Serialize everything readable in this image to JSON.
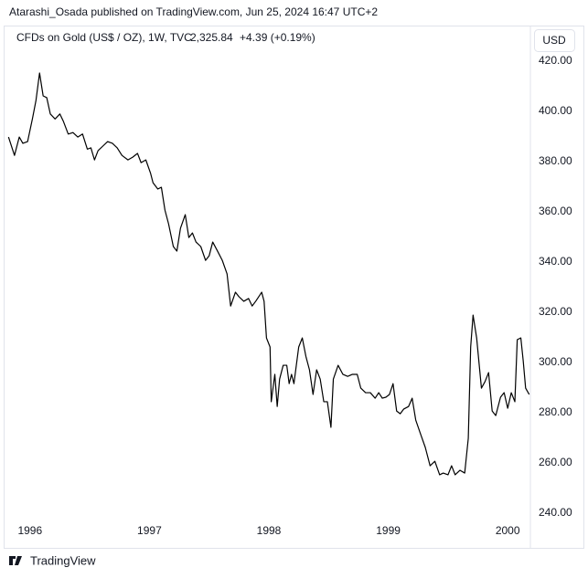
{
  "header": {
    "publisher": "Atarashi_Osada published on TradingView.com, Jun 25, 2024 16:47 UTC+2"
  },
  "legend": {
    "symbol": "CFDs on Gold (US$ / OZ), 1W, TVC",
    "price": "2,325.84",
    "change": "+4.39 (+0.19%)"
  },
  "currency": "USD",
  "footer": {
    "brand": "TradingView"
  },
  "chart_data": {
    "type": "line",
    "x": [
      1995.82,
      1995.87,
      1995.91,
      1995.94,
      1995.98,
      1996.02,
      1996.05,
      1996.08,
      1996.11,
      1996.14,
      1996.17,
      1996.21,
      1996.25,
      1996.28,
      1996.32,
      1996.36,
      1996.4,
      1996.44,
      1996.48,
      1996.51,
      1996.54,
      1996.57,
      1996.61,
      1996.65,
      1996.69,
      1996.73,
      1996.77,
      1996.82,
      1996.86,
      1996.9,
      1996.93,
      1996.97,
      1997.01,
      1997.03,
      1997.07,
      1997.1,
      1997.13,
      1997.16,
      1997.2,
      1997.23,
      1997.26,
      1997.3,
      1997.33,
      1997.36,
      1997.39,
      1997.43,
      1997.47,
      1997.5,
      1997.53,
      1997.57,
      1997.61,
      1997.65,
      1997.68,
      1997.72,
      1997.75,
      1997.79,
      1997.83,
      1997.86,
      1997.89,
      1997.94,
      1997.96,
      1997.98,
      1998.01,
      1998.02,
      1998.05,
      1998.07,
      1998.09,
      1998.12,
      1998.15,
      1998.17,
      1998.19,
      1998.21,
      1998.25,
      1998.28,
      1998.31,
      1998.34,
      1998.37,
      1998.4,
      1998.43,
      1998.46,
      1998.49,
      1998.52,
      1998.54,
      1998.58,
      1998.62,
      1998.66,
      1998.7,
      1998.74,
      1998.77,
      1998.81,
      1998.85,
      1998.89,
      1998.92,
      1998.95,
      1998.98,
      1999.01,
      1999.04,
      1999.07,
      1999.1,
      1999.13,
      1999.17,
      1999.2,
      1999.23,
      1999.27,
      1999.31,
      1999.35,
      1999.39,
      1999.43,
      1999.46,
      1999.5,
      1999.53,
      1999.56,
      1999.6,
      1999.64,
      1999.67,
      1999.69,
      1999.71,
      1999.74,
      1999.78,
      1999.81,
      1999.84,
      1999.87,
      1999.9,
      1999.94,
      1999.97,
      2000.0,
      2000.03,
      2000.06,
      2000.08,
      2000.11,
      2000.13,
      2000.15,
      2000.18
    ],
    "series": [
      {
        "color": "#000000",
        "values": [
          389.8,
          382.5,
          389.8,
          387.3,
          388,
          397,
          404.4,
          415.3,
          406.2,
          405.5,
          399,
          397,
          399,
          396,
          391,
          391.6,
          389.8,
          391,
          385,
          385.5,
          380.7,
          384.4,
          386.2,
          388,
          387.3,
          385.5,
          382.5,
          380.7,
          381.8,
          383.3,
          379.6,
          380.7,
          375.3,
          371.6,
          369.1,
          369.8,
          360.7,
          355.3,
          346.2,
          344.4,
          353.5,
          358.9,
          349.8,
          351.6,
          348,
          346.2,
          340.7,
          342.5,
          348,
          344.4,
          340.7,
          335.3,
          322.5,
          328,
          326.2,
          324.4,
          325.5,
          322.5,
          324.4,
          328,
          324.4,
          309.8,
          306.2,
          284.4,
          295.3,
          282.5,
          293.4,
          298.9,
          298.9,
          291.6,
          295.3,
          291.6,
          306.2,
          309.8,
          302.5,
          297.1,
          287.3,
          297.1,
          293.4,
          284.4,
          284.4,
          274.2,
          293.4,
          298.9,
          295.3,
          294.5,
          295.3,
          295.3,
          289.8,
          288,
          288,
          285.8,
          288,
          285.8,
          286.2,
          287.3,
          291.6,
          280.7,
          279.6,
          281.5,
          282.5,
          285.8,
          277.1,
          271.6,
          266.2,
          258.9,
          260.7,
          255.3,
          256,
          255.3,
          258.9,
          255.3,
          257.1,
          256,
          269.8,
          306.2,
          318.9,
          309.8,
          289.8,
          292.4,
          296,
          280.7,
          278.9,
          286.2,
          288,
          281.8,
          288,
          284.4,
          309.1,
          309.8,
          300.7,
          289.8,
          287.3
        ]
      }
    ],
    "xlim": [
      1995.81,
      2000.19
    ],
    "xticks": [
      1996,
      1997,
      1998,
      1999,
      2000
    ],
    "ylim": [
      226.2,
      434.2
    ],
    "yticks": [
      {
        "value": 240,
        "label": "240.00"
      },
      {
        "value": 260,
        "label": "260.00"
      },
      {
        "value": 280,
        "label": "280.00"
      },
      {
        "value": 300,
        "label": "300.00"
      },
      {
        "value": 320,
        "label": "320.00"
      },
      {
        "value": 340,
        "label": "340.00"
      },
      {
        "value": 360,
        "label": "360.00"
      },
      {
        "value": 380,
        "label": "380.00"
      },
      {
        "value": 400,
        "label": "400.00"
      },
      {
        "value": 420,
        "label": "420.00"
      }
    ],
    "grid": false
  }
}
